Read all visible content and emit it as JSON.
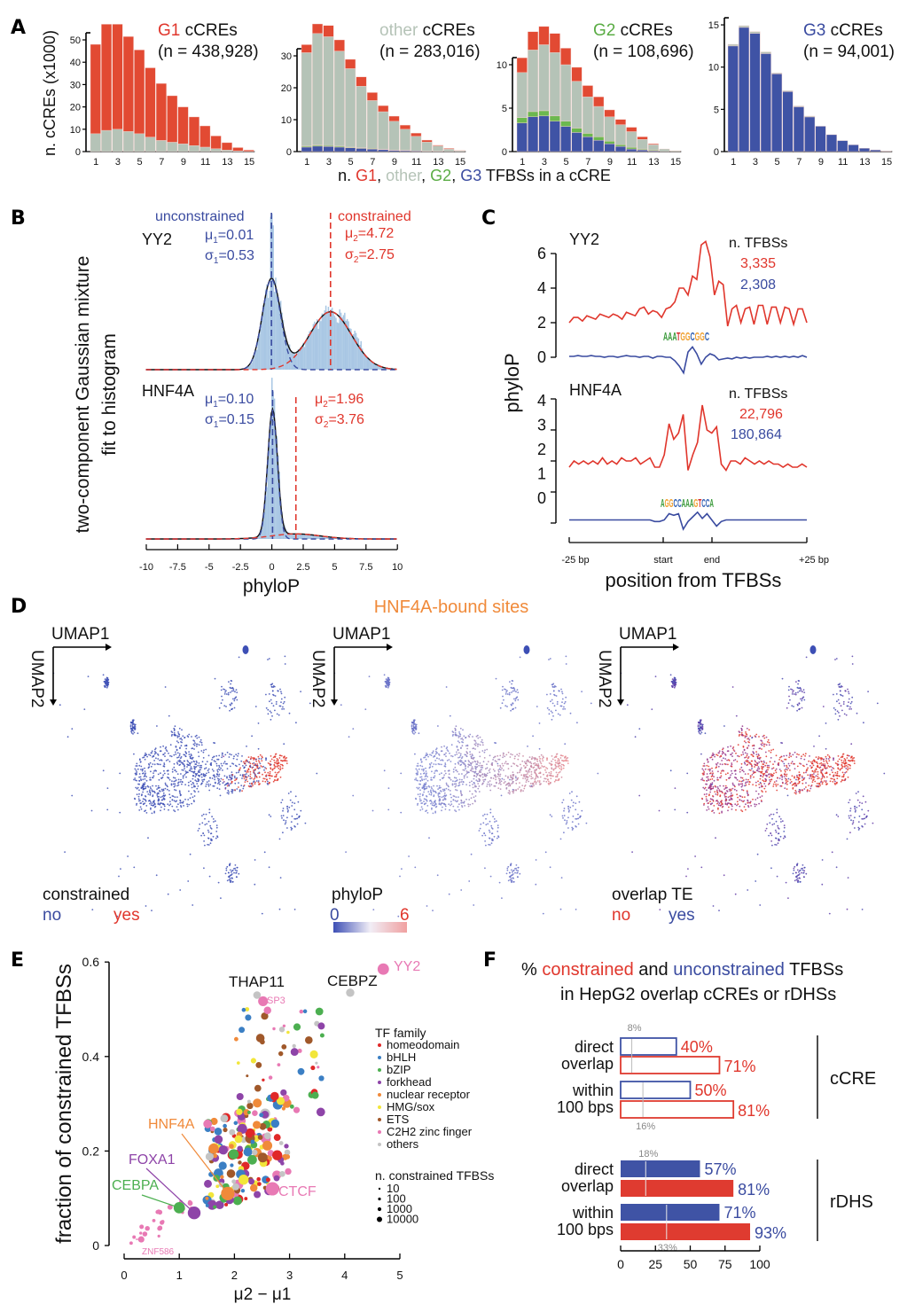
{
  "colors": {
    "g1_red": "#e24a33",
    "other_gray": "#b5c3b7",
    "g2_green": "#6cb84f",
    "g3_blue": "#3f53a5",
    "text_red": "#e0362c",
    "text_blue": "#3a4ba0",
    "text_green": "#5aac44",
    "text_orange": "#f08a3a",
    "text_pink": "#e66fa8",
    "text_purple": "#8e44a8",
    "text_gray": "#b5c3b7",
    "hist_blue": "#a9c7e4"
  },
  "panel_letters": [
    "A",
    "B",
    "C",
    "D",
    "E",
    "F"
  ],
  "chart_data": [
    {
      "type": "bar",
      "stacked": true,
      "ylabel": "n. cCREs (x1000)",
      "x": [
        1,
        2,
        3,
        4,
        5,
        6,
        7,
        8,
        9,
        10,
        11,
        12,
        13,
        14,
        15
      ],
      "xticks": [
        "1",
        "3",
        "5",
        "7",
        "9",
        "11",
        "13",
        "15"
      ],
      "xlabel_parts": [
        "n. ",
        "G1",
        ", ",
        "other",
        ", ",
        "G2",
        ", ",
        "G3",
        " TFBSs in a cCRE"
      ],
      "panels": [
        {
          "title_colored": "G1",
          "title_rest": " cCREs",
          "n_label": "(n = 438,928)",
          "yticks": [
            0,
            10,
            20,
            30,
            40,
            50
          ],
          "series": [
            {
              "name": "G3",
              "values": [
                0,
                0,
                0,
                0,
                0,
                0,
                0,
                0,
                0,
                0,
                0,
                0,
                0,
                0,
                0
              ]
            },
            {
              "name": "G2",
              "values": [
                0,
                0,
                0,
                0,
                0,
                0,
                0,
                0,
                0,
                0,
                0,
                0,
                0,
                0,
                0
              ]
            },
            {
              "name": "other",
              "values": [
                8,
                9.5,
                10,
                9,
                8,
                6.5,
                5,
                4.2,
                3.5,
                2.7,
                2,
                1.3,
                0.7,
                0.3,
                0.1
              ]
            },
            {
              "name": "G1",
              "values": [
                40,
                47.5,
                47,
                42.5,
                37.5,
                31,
                25.5,
                20.8,
                16.5,
                12.8,
                9.5,
                5.7,
                3.3,
                1.5,
                0.6
              ]
            }
          ]
        },
        {
          "title_colored": "other",
          "title_rest": " cCREs",
          "n_label": "(n = 283,016)",
          "yticks": [
            0,
            10,
            20,
            30
          ],
          "series": [
            {
              "name": "G3",
              "values": [
                1.4,
                1.7,
                1.6,
                1.4,
                1.2,
                1.0,
                0.8,
                0.6,
                0.4,
                0.3,
                0.2,
                0.1,
                0.1,
                0,
                0
              ]
            },
            {
              "name": "G2",
              "values": [
                0.3,
                0.3,
                0.3,
                0.3,
                0.2,
                0.2,
                0.2,
                0.1,
                0.1,
                0.1,
                0,
                0,
                0,
                0,
                0
              ]
            },
            {
              "name": "other",
              "values": [
                29.3,
                35,
                34.1,
                29.8,
                24.6,
                19.3,
                15,
                11.8,
                9,
                6.6,
                4.6,
                2.9,
                1.7,
                0.8,
                0.3
              ]
            },
            {
              "name": "G1",
              "values": [
                2.5,
                3,
                3.5,
                3.5,
                2.9,
                2.9,
                2.5,
                1.9,
                1.6,
                1.3,
                1,
                0.6,
                0.2,
                0.2,
                0.1
              ]
            }
          ]
        },
        {
          "title_colored": "G2",
          "title_rest": " cCREs",
          "n_label": "(n = 108,696)",
          "yticks": [
            0,
            5,
            10
          ],
          "series": [
            {
              "name": "G3",
              "values": [
                3.3,
                4,
                4.1,
                3.5,
                2.9,
                2.2,
                1.7,
                1.3,
                0.9,
                0.6,
                0.3,
                0.2,
                0.1,
                0,
                0
              ]
            },
            {
              "name": "G2",
              "values": [
                0.6,
                0.6,
                0.6,
                0.6,
                0.6,
                0.5,
                0.4,
                0.4,
                0.3,
                0.2,
                0.2,
                0.1,
                0.1,
                0,
                0
              ]
            },
            {
              "name": "other",
              "values": [
                5.2,
                7.1,
                7.6,
                7.3,
                6.5,
                5.4,
                4.2,
                3.5,
                2.8,
                2.3,
                1.8,
                1.1,
                0.6,
                0.3,
                0.1
              ]
            },
            {
              "name": "G1",
              "values": [
                1.7,
                2.1,
                2.1,
                2.2,
                1.9,
                1.6,
                1.3,
                1.1,
                0.8,
                0.6,
                0.5,
                0.3,
                0.1,
                0,
                0
              ]
            }
          ]
        },
        {
          "title_colored": "G3",
          "title_rest": " cCREs",
          "n_label": "(n = 94,001)",
          "yticks": [
            0,
            5,
            10,
            15
          ],
          "series": [
            {
              "name": "G3",
              "values": [
                12.5,
                14.7,
                14,
                11.6,
                9.2,
                7.1,
                5.3,
                4.1,
                3,
                2,
                1.3,
                0.8,
                0.4,
                0.2,
                0.05
              ]
            },
            {
              "name": "G2",
              "values": [
                0,
                0,
                0,
                0,
                0,
                0,
                0,
                0,
                0,
                0,
                0,
                0,
                0,
                0,
                0
              ]
            },
            {
              "name": "other",
              "values": [
                0.2,
                0.2,
                0.2,
                0.2,
                0.1,
                0.1,
                0.1,
                0.1,
                0,
                0,
                0,
                0,
                0,
                0,
                0
              ]
            },
            {
              "name": "G1",
              "values": [
                0,
                0,
                0,
                0,
                0,
                0,
                0,
                0,
                0,
                0,
                0,
                0,
                0,
                0,
                0
              ]
            }
          ]
        }
      ]
    },
    {
      "type": "area",
      "ylabel_lines": [
        "two-component Gaussian mixture",
        "fit to histogram"
      ],
      "xlabel": "phyloP",
      "xlim": [
        -10,
        10
      ],
      "xticks": [
        "-10",
        "-7.5",
        "-5",
        "-2.5",
        "0",
        "2.5",
        "5",
        "7.5",
        "10"
      ],
      "unconstrained_label": "unconstrained",
      "constrained_label": "constrained",
      "mu_symbol": "μ",
      "sigma_symbol": "σ",
      "plots": [
        {
          "tf": "YY2",
          "mu1": "0.01",
          "sigma1": "0.53",
          "mu2": "4.72",
          "sigma2": "2.75",
          "peak1_rel": 1.0,
          "peak2_rel": 0.64
        },
        {
          "tf": "HNF4A",
          "mu1": "0.10",
          "sigma1": "0.15",
          "mu2": "1.96",
          "sigma2": "3.76",
          "peak1_rel": 1.0,
          "peak2_rel": 0.04
        }
      ]
    },
    {
      "type": "line",
      "ylabel": "phyloP",
      "xlabel": "position from TFBSs",
      "xticks": [
        "-25 bp",
        "start",
        "end",
        "+25 bp"
      ],
      "n_tfbs_label": "n. TFBSs",
      "plots": [
        {
          "tf": "YY2",
          "motif": "AAATGGCGGC",
          "yticks": [
            0,
            2,
            4,
            6
          ],
          "n_constrained": "3,335",
          "n_unconstrained": "2,308",
          "constrained": [
            2.0,
            2.3,
            2.3,
            2.1,
            2.4,
            2.3,
            2.2,
            2.5,
            2.4,
            2.3,
            2.5,
            2.4,
            2.2,
            2.6,
            2.5,
            2.4,
            2.8,
            2.9,
            2.5,
            2.7,
            2.6,
            2.3,
            2.8,
            2.9,
            3.2,
            4.0,
            4.0,
            3.6,
            4.7,
            4.5,
            6.5,
            6.7,
            5.8,
            3.6,
            4.4,
            4.2,
            1.8,
            2.8,
            3.0,
            2.0,
            2.8,
            2.9,
            1.9,
            3.0,
            3.0,
            1.9,
            2.9,
            2.9,
            2.0,
            2.9,
            2.8,
            1.9,
            2.8,
            2.8,
            2.0
          ],
          "unconstrained": [
            0.05,
            0.05,
            0.1,
            0.05,
            0.05,
            0.1,
            0.05,
            0.05,
            0.0,
            0.05,
            0.05,
            0.0,
            0.05,
            0.1,
            0.05,
            0.05,
            0.0,
            0.05,
            0.05,
            -0.05,
            0.05,
            0.05,
            0.0,
            0.0,
            -0.2,
            -0.5,
            -0.9,
            0.3,
            0.6,
            0.2,
            -0.4,
            0.0,
            0.2,
            0.1,
            -0.15,
            -0.1,
            -0.05,
            -0.1,
            0.0,
            -0.05,
            0.0,
            -0.05,
            0.0,
            0.0,
            0.0,
            0.05,
            0.0,
            0.05,
            0.0,
            0.05,
            0.0,
            0.05,
            0.0,
            0.1,
            0.0
          ]
        },
        {
          "tf": "HNF4A",
          "motif": "AGGCCAAAGTCCA",
          "yticks": [
            0,
            1,
            2,
            3,
            4
          ],
          "n_constrained": "22,796",
          "n_unconstrained": "180,864",
          "constrained": [
            1.8,
            2.0,
            1.9,
            2.0,
            1.9,
            2.0,
            1.9,
            2.1,
            1.9,
            2.0,
            1.9,
            2.1,
            2.0,
            2.0,
            2.1,
            1.9,
            2.0,
            2.1,
            1.8,
            1.8,
            2.2,
            3.2,
            2.7,
            2.9,
            3.5,
            1.7,
            2.2,
            2.6,
            3.8,
            3.0,
            2.9,
            3.1,
            1.9,
            1.7,
            2.0,
            2.0,
            1.9,
            2.1,
            2.0,
            1.9,
            2.0,
            1.9,
            2.0,
            1.9,
            1.9,
            1.8,
            1.9,
            1.8,
            1.8,
            1.9,
            1.8
          ],
          "unconstrained": [
            0.1,
            0.1,
            0.1,
            0.1,
            0.1,
            0.1,
            0.1,
            0.1,
            0.1,
            0.1,
            0.1,
            0.1,
            0.1,
            0.1,
            0.1,
            0.1,
            0.1,
            0.1,
            0.05,
            0.05,
            0.1,
            0.3,
            0.25,
            0.3,
            -0.2,
            0.05,
            0.2,
            0.35,
            0.15,
            0.3,
            0.1,
            -0.1,
            0.05,
            0.1,
            0.1,
            0.1,
            0.1,
            0.1,
            0.1,
            0.1,
            0.1,
            0.1,
            0.1,
            0.1,
            0.1,
            0.1,
            0.1,
            0.1,
            0.1,
            0.1,
            0.1
          ]
        }
      ]
    },
    {
      "type": "scatter",
      "title": "HNF4A-bound sites",
      "umap1": "UMAP1",
      "umap2": "UMAP2",
      "legends": [
        {
          "title": "constrained",
          "low": "no",
          "high": "yes"
        },
        {
          "title": "phyloP",
          "low": "0",
          "high": "6"
        },
        {
          "title": "overlap TE",
          "low": "no",
          "high": "yes"
        }
      ]
    },
    {
      "type": "scatter",
      "xlabel": "μ2 − μ1",
      "ylabel": "fraction of constrained TFBSs",
      "xlim": [
        0,
        5
      ],
      "ylim": [
        0,
        0.6
      ],
      "xticks": [
        "0",
        "1",
        "2",
        "3",
        "4",
        "5"
      ],
      "yticks": [
        "0",
        "0.2",
        "0.4",
        "0.6"
      ],
      "legend_title": "TF family",
      "families": [
        {
          "name": "homeodomain",
          "color": "#e02828"
        },
        {
          "name": "bHLH",
          "color": "#3b7fc4"
        },
        {
          "name": "bZIP",
          "color": "#4caf50"
        },
        {
          "name": "forkhead",
          "color": "#8e44a8"
        },
        {
          "name": "nuclear receptor",
          "color": "#f08a3a"
        },
        {
          "name": "HMG/sox",
          "color": "#f2e63a"
        },
        {
          "name": "ETS",
          "color": "#a0582a"
        },
        {
          "name": "C2H2 zinc finger",
          "color": "#e879b4"
        },
        {
          "name": "others",
          "color": "#c4c4c4"
        }
      ],
      "size_legend_title": "n. constrained TFBSs",
      "size_legend": [
        "10",
        "100",
        "1000",
        "10000"
      ],
      "named_points": [
        {
          "label": "YY2",
          "x": 4.7,
          "y": 0.585,
          "family": 7,
          "n": 3335
        },
        {
          "label": "CEBPZ",
          "x": 4.1,
          "y": 0.535,
          "family": 8,
          "n": 200
        },
        {
          "label": "THAP11",
          "x": 2.41,
          "y": 0.53,
          "family": 8,
          "n": 100
        },
        {
          "label": "SP3",
          "x": 2.52,
          "y": 0.517,
          "family": 7,
          "n": 800
        },
        {
          "label": "HNF4A",
          "x": 1.88,
          "y": 0.11,
          "family": 4,
          "n": 22796
        },
        {
          "label": "FOXA1",
          "x": 1.27,
          "y": 0.069,
          "family": 3,
          "n": 12000
        },
        {
          "label": "CEBPA",
          "x": 1.0,
          "y": 0.08,
          "family": 2,
          "n": 3000
        },
        {
          "label": "CTCF",
          "x": 2.69,
          "y": 0.12,
          "family": 7,
          "n": 20000
        },
        {
          "label": "ZNF586",
          "x": 0.31,
          "y": 0.013,
          "family": 7,
          "n": 30
        }
      ]
    },
    {
      "type": "bar",
      "orientation": "horizontal",
      "title_parts": [
        "% ",
        "constrained",
        " and ",
        "unconstrained",
        " TFBSs"
      ],
      "title_line2": "in HepG2 overlap cCREs or rDHSs",
      "xticks": [
        "0",
        "25",
        "50",
        "75",
        "100"
      ],
      "xlim": [
        0,
        100
      ],
      "groups": [
        {
          "name": "cCRE",
          "filled": false,
          "rows": [
            {
              "label1": "direct",
              "label2": "overlap",
              "unconstrained": 40,
              "constrained": 71,
              "unconstrained_label": "40%",
              "constrained_label": "71%",
              "background": 8,
              "background_label": "8%"
            },
            {
              "label1": "within",
              "label2": "100 bps",
              "unconstrained": 50,
              "constrained": 81,
              "unconstrained_label": "50%",
              "constrained_label": "81%",
              "background": 16,
              "background_label": "16%"
            }
          ]
        },
        {
          "name": "rDHS",
          "filled": true,
          "rows": [
            {
              "label1": "direct",
              "label2": "overlap",
              "unconstrained": 57,
              "constrained": 81,
              "unconstrained_label": "57%",
              "constrained_label": "81%",
              "background": 18,
              "background_label": "18%"
            },
            {
              "label1": "within",
              "label2": "100 bps",
              "unconstrained": 71,
              "constrained": 93,
              "unconstrained_label": "71%",
              "constrained_label": "93%",
              "background": 33,
              "background_label": "33%"
            }
          ]
        }
      ]
    }
  ]
}
